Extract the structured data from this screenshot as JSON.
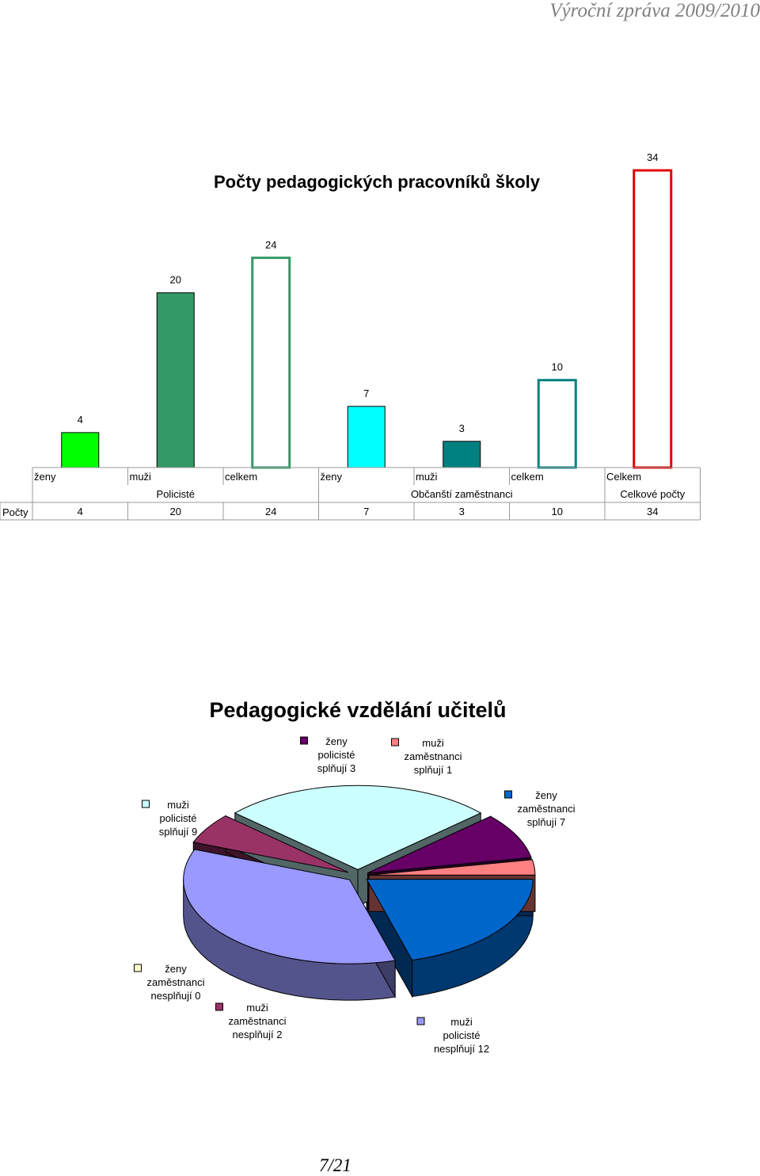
{
  "page": {
    "header": "Výroční zpráva 2009/2010",
    "page_number": "7/21"
  },
  "chart_data": [
    {
      "type": "bar",
      "title": "Počty pedagogických pracovníků školy",
      "categories": [
        "ženy",
        "muži",
        "celkem",
        "ženy",
        "muži",
        "celkem",
        "Celkem"
      ],
      "groups": [
        {
          "label": "Policisté",
          "span": 3
        },
        {
          "label": "Občanští zaměstnanci",
          "span": 3
        },
        {
          "label": "Celkové počty",
          "span": 1
        }
      ],
      "series": [
        {
          "name": "Počty",
          "values": [
            4,
            20,
            24,
            7,
            3,
            10,
            34
          ]
        }
      ],
      "bar_styles": [
        {
          "fill": "#00ff00",
          "stroke": "#000000",
          "hollow": false
        },
        {
          "fill": "#339966",
          "stroke": "#000000",
          "hollow": false
        },
        {
          "fill": "#ffffff",
          "stroke": "#339966",
          "hollow": true
        },
        {
          "fill": "#00ffff",
          "stroke": "#000000",
          "hollow": false
        },
        {
          "fill": "#008080",
          "stroke": "#000000",
          "hollow": false
        },
        {
          "fill": "#ffffff",
          "stroke": "#008080",
          "hollow": true
        },
        {
          "fill": "#ffffff",
          "stroke": "#e00000",
          "hollow": true
        }
      ],
      "ylim": [
        0,
        34
      ],
      "grid": false,
      "data_table": true
    },
    {
      "type": "pie",
      "title": "Pedagogické vzdělání učitelů",
      "slices": [
        {
          "label_lines": [
            "ženy",
            "zaměstnanci",
            "splňují 7"
          ],
          "value": 7,
          "color": "#0066cc"
        },
        {
          "label_lines": [
            "muži",
            "policisté",
            "nesplňují 12"
          ],
          "value": 12,
          "color": "#9999ff"
        },
        {
          "label_lines": [
            "muži",
            "zaměstnanci",
            "nesplňují 2"
          ],
          "value": 2,
          "color": "#993366"
        },
        {
          "label_lines": [
            "ženy",
            "zaměstnanci",
            "nesplňují 0"
          ],
          "value": 0,
          "color": "#ffffcc"
        },
        {
          "label_lines": [
            "muži",
            "policisté",
            "splňují 9"
          ],
          "value": 9,
          "color": "#ccffff"
        },
        {
          "label_lines": [
            "ženy",
            "policisté",
            "splňují 3"
          ],
          "value": 3,
          "color": "#660066"
        },
        {
          "label_lines": [
            "muži",
            "zaměstnanci",
            "splňují 1"
          ],
          "value": 1,
          "color": "#ff8080"
        }
      ],
      "style": "3d-exploded"
    }
  ]
}
